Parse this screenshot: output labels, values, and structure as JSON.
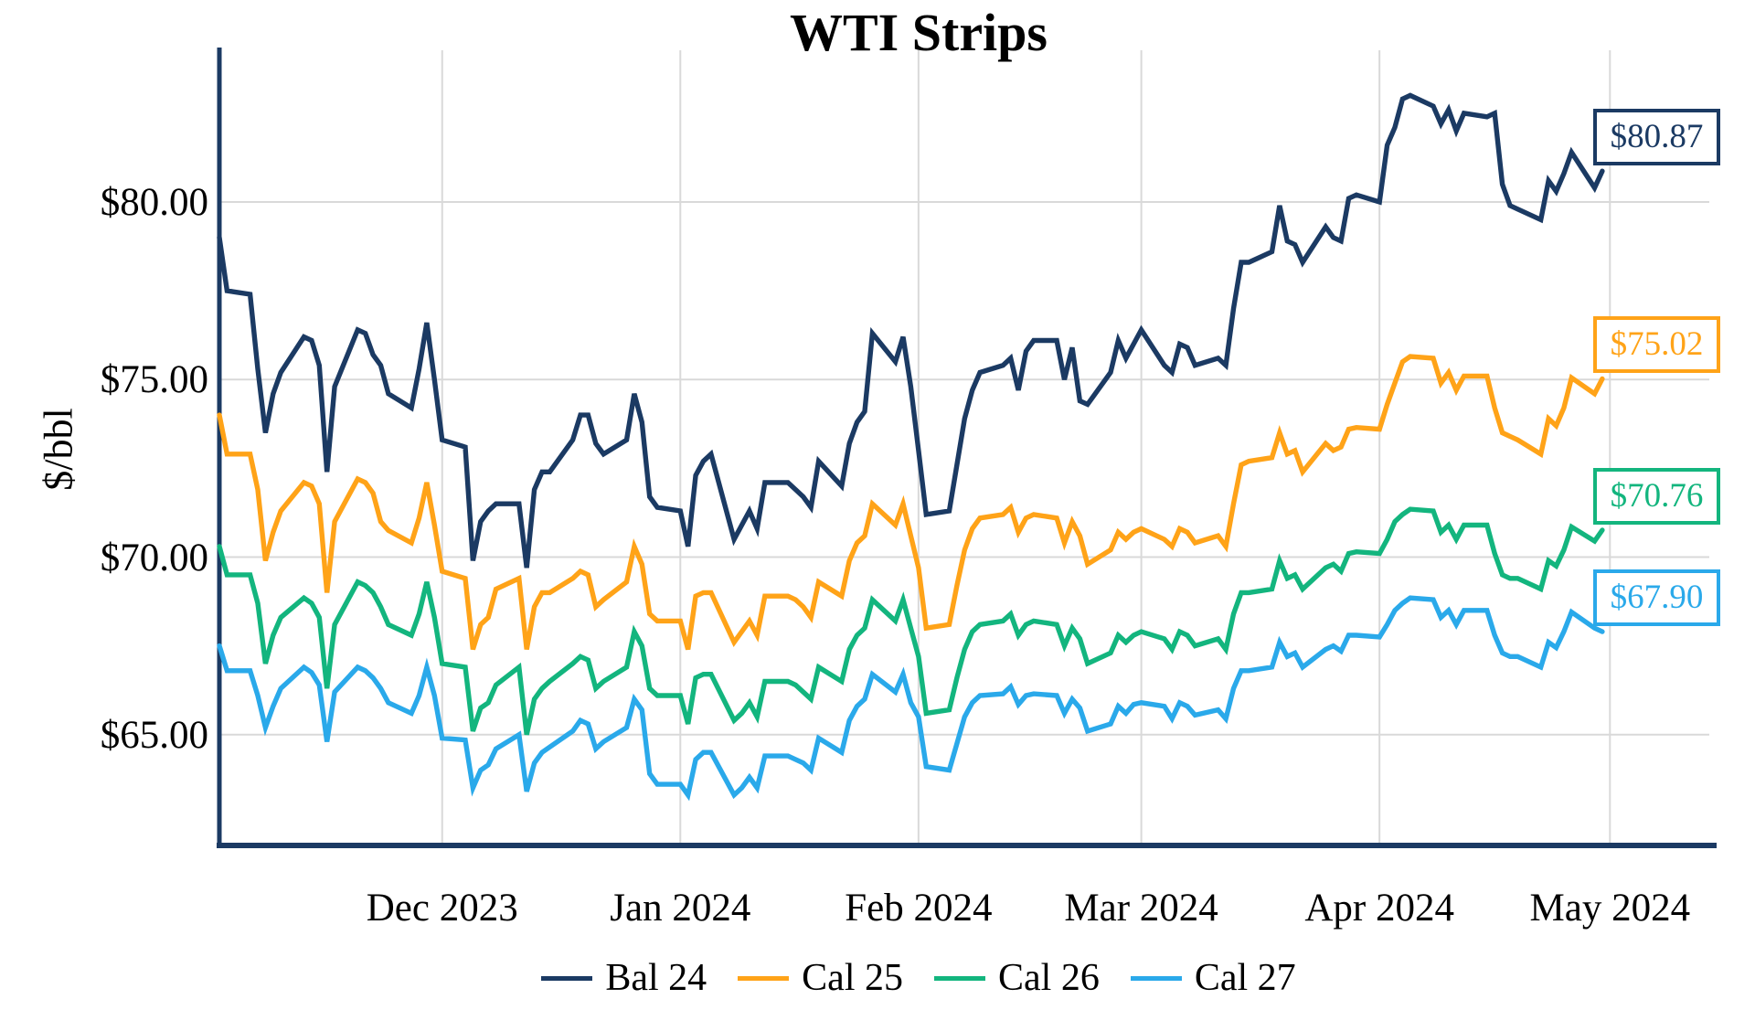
{
  "chart_data": {
    "type": "line",
    "title": "WTI Strips",
    "ylabel": "$/bbl",
    "xlabel": "",
    "grid": true,
    "legend_position": "bottom-center",
    "ylim": [
      61.9,
      84.3
    ],
    "y_ticks": [
      {
        "value": 80,
        "label": "$80.00"
      },
      {
        "value": 75,
        "label": "$75.00"
      },
      {
        "value": 70,
        "label": "$70.00"
      },
      {
        "value": 65,
        "label": "$65.00"
      }
    ],
    "x_ticks": [
      {
        "date": "2023-12-01",
        "label": "Dec 2023"
      },
      {
        "date": "2024-01-01",
        "label": "Jan 2024"
      },
      {
        "date": "2024-02-01",
        "label": "Feb 2024"
      },
      {
        "date": "2024-03-01",
        "label": "Mar 2024"
      },
      {
        "date": "2024-04-01",
        "label": "Apr 2024"
      },
      {
        "date": "2024-05-01",
        "label": "May 2024"
      }
    ],
    "x_dates": [
      "2023-11-02",
      "2023-11-03",
      "2023-11-06",
      "2023-11-07",
      "2023-11-08",
      "2023-11-09",
      "2023-11-10",
      "2023-11-13",
      "2023-11-14",
      "2023-11-15",
      "2023-11-16",
      "2023-11-17",
      "2023-11-20",
      "2023-11-21",
      "2023-11-22",
      "2023-11-23",
      "2023-11-24",
      "2023-11-27",
      "2023-11-28",
      "2023-11-29",
      "2023-11-30",
      "2023-12-01",
      "2023-12-04",
      "2023-12-05",
      "2023-12-06",
      "2023-12-07",
      "2023-12-08",
      "2023-12-11",
      "2023-12-12",
      "2023-12-13",
      "2023-12-14",
      "2023-12-15",
      "2023-12-18",
      "2023-12-19",
      "2023-12-20",
      "2023-12-21",
      "2023-12-22",
      "2023-12-25",
      "2023-12-26",
      "2023-12-27",
      "2023-12-28",
      "2023-12-29",
      "2024-01-01",
      "2024-01-02",
      "2024-01-03",
      "2024-01-04",
      "2024-01-05",
      "2024-01-08",
      "2024-01-09",
      "2024-01-10",
      "2024-01-11",
      "2024-01-12",
      "2024-01-15",
      "2024-01-16",
      "2024-01-17",
      "2024-01-18",
      "2024-01-19",
      "2024-01-22",
      "2024-01-23",
      "2024-01-24",
      "2024-01-25",
      "2024-01-26",
      "2024-01-29",
      "2024-01-30",
      "2024-01-31",
      "2024-02-01",
      "2024-02-02",
      "2024-02-05",
      "2024-02-06",
      "2024-02-07",
      "2024-02-08",
      "2024-02-09",
      "2024-02-12",
      "2024-02-13",
      "2024-02-14",
      "2024-02-15",
      "2024-02-16",
      "2024-02-19",
      "2024-02-20",
      "2024-02-21",
      "2024-02-22",
      "2024-02-23",
      "2024-02-26",
      "2024-02-27",
      "2024-02-28",
      "2024-02-29",
      "2024-03-01",
      "2024-03-04",
      "2024-03-05",
      "2024-03-06",
      "2024-03-07",
      "2024-03-08",
      "2024-03-11",
      "2024-03-12",
      "2024-03-13",
      "2024-03-14",
      "2024-03-15",
      "2024-03-18",
      "2024-03-19",
      "2024-03-20",
      "2024-03-21",
      "2024-03-22",
      "2024-03-25",
      "2024-03-26",
      "2024-03-27",
      "2024-03-28",
      "2024-03-29",
      "2024-04-01",
      "2024-04-02",
      "2024-04-03",
      "2024-04-04",
      "2024-04-05",
      "2024-04-08",
      "2024-04-09",
      "2024-04-10",
      "2024-04-11",
      "2024-04-12",
      "2024-04-15",
      "2024-04-16",
      "2024-04-17",
      "2024-04-18",
      "2024-04-19",
      "2024-04-22",
      "2024-04-23",
      "2024-04-24",
      "2024-04-25",
      "2024-04-26",
      "2024-04-29",
      "2024-04-30"
    ],
    "series": [
      {
        "name": "Bal 24",
        "color": "#1b3a63",
        "end_label": "$80.87",
        "values": [
          79.0,
          77.5,
          77.4,
          75.3,
          73.5,
          74.6,
          75.2,
          76.2,
          76.1,
          75.4,
          72.4,
          74.8,
          76.4,
          76.3,
          75.7,
          75.4,
          74.6,
          74.2,
          75.3,
          76.6,
          75.0,
          73.3,
          73.1,
          69.9,
          71.0,
          71.3,
          71.5,
          71.5,
          69.7,
          71.9,
          72.4,
          72.4,
          73.3,
          74.0,
          74.0,
          73.2,
          72.9,
          73.3,
          74.6,
          73.8,
          71.7,
          71.4,
          71.3,
          70.3,
          72.3,
          72.7,
          72.9,
          70.5,
          70.9,
          71.3,
          70.8,
          72.1,
          72.1,
          71.9,
          71.7,
          71.4,
          72.7,
          72.0,
          73.2,
          73.8,
          74.1,
          76.3,
          75.5,
          76.2,
          74.8,
          73.0,
          71.2,
          71.3,
          72.6,
          73.9,
          74.7,
          75.2,
          75.4,
          75.6,
          74.7,
          75.8,
          76.1,
          76.1,
          75.0,
          75.9,
          74.4,
          74.3,
          75.2,
          76.1,
          75.6,
          76.0,
          76.4,
          75.4,
          75.2,
          76.0,
          75.9,
          75.4,
          75.6,
          75.4,
          77.0,
          78.3,
          78.3,
          78.6,
          79.9,
          78.9,
          78.8,
          78.3,
          79.3,
          79.0,
          78.9,
          80.1,
          80.2,
          80.0,
          81.6,
          82.1,
          82.9,
          83.0,
          82.7,
          82.2,
          82.6,
          82.0,
          82.5,
          82.4,
          82.5,
          80.5,
          79.9,
          79.8,
          79.5,
          80.6,
          80.3,
          80.8,
          81.4,
          80.4,
          80.87
        ]
      },
      {
        "name": "Cal 25",
        "color": "#ffa318",
        "end_label": "$75.02",
        "values": [
          74.0,
          72.9,
          72.9,
          71.9,
          69.9,
          70.7,
          71.3,
          72.1,
          72.0,
          71.5,
          69.0,
          71.0,
          72.2,
          72.1,
          71.8,
          71.0,
          70.75,
          70.4,
          71.1,
          72.1,
          70.9,
          69.6,
          69.4,
          67.4,
          68.1,
          68.3,
          69.1,
          69.4,
          67.4,
          68.6,
          69.0,
          69.0,
          69.4,
          69.6,
          69.5,
          68.6,
          68.8,
          69.3,
          70.3,
          69.8,
          68.4,
          68.2,
          68.2,
          67.4,
          68.9,
          69.0,
          69.0,
          67.6,
          67.9,
          68.2,
          67.8,
          68.9,
          68.9,
          68.8,
          68.6,
          68.3,
          69.3,
          68.9,
          69.9,
          70.4,
          70.6,
          71.5,
          70.9,
          71.5,
          70.6,
          69.7,
          68.0,
          68.1,
          69.2,
          70.2,
          70.8,
          71.1,
          71.2,
          71.4,
          70.7,
          71.1,
          71.2,
          71.1,
          70.4,
          71.0,
          70.6,
          69.8,
          70.2,
          70.7,
          70.5,
          70.7,
          70.8,
          70.5,
          70.3,
          70.8,
          70.7,
          70.4,
          70.6,
          70.3,
          71.5,
          72.6,
          72.7,
          72.8,
          73.5,
          72.9,
          73.0,
          72.4,
          73.2,
          73.0,
          73.1,
          73.6,
          73.65,
          73.6,
          74.3,
          74.9,
          75.5,
          75.65,
          75.6,
          74.9,
          75.2,
          74.7,
          75.1,
          75.1,
          74.2,
          73.5,
          73.4,
          73.3,
          72.9,
          73.9,
          73.7,
          74.2,
          75.05,
          74.6,
          75.02
        ]
      },
      {
        "name": "Cal 26",
        "color": "#13b57e",
        "end_label": "$70.76",
        "values": [
          70.3,
          69.5,
          69.5,
          68.7,
          67.0,
          67.8,
          68.3,
          68.85,
          68.7,
          68.3,
          66.3,
          68.1,
          69.3,
          69.2,
          69.0,
          68.6,
          68.1,
          67.8,
          68.4,
          69.3,
          68.3,
          67.0,
          66.9,
          65.1,
          65.75,
          65.9,
          66.4,
          66.9,
          65.0,
          66.0,
          66.3,
          66.5,
          67.0,
          67.2,
          67.1,
          66.3,
          66.5,
          66.9,
          67.9,
          67.5,
          66.3,
          66.1,
          66.1,
          65.3,
          66.6,
          66.7,
          66.7,
          65.4,
          65.6,
          65.9,
          65.5,
          66.5,
          66.5,
          66.4,
          66.2,
          66.0,
          66.9,
          66.5,
          67.4,
          67.8,
          68.0,
          68.8,
          68.2,
          68.8,
          68.0,
          67.2,
          65.6,
          65.7,
          66.6,
          67.4,
          67.9,
          68.1,
          68.2,
          68.4,
          67.8,
          68.1,
          68.2,
          68.1,
          67.5,
          68.0,
          67.7,
          67.0,
          67.3,
          67.8,
          67.6,
          67.8,
          67.9,
          67.7,
          67.4,
          67.9,
          67.8,
          67.5,
          67.7,
          67.4,
          68.4,
          69.0,
          69.0,
          69.1,
          69.9,
          69.4,
          69.5,
          69.1,
          69.7,
          69.8,
          69.6,
          70.1,
          70.15,
          70.1,
          70.5,
          71.0,
          71.2,
          71.35,
          71.3,
          70.7,
          70.9,
          70.5,
          70.9,
          70.9,
          70.1,
          69.5,
          69.4,
          69.4,
          69.1,
          69.9,
          69.75,
          70.2,
          70.85,
          70.45,
          70.76
        ]
      },
      {
        "name": "Cal 27",
        "color": "#2aa9ea",
        "end_label": "$67.90",
        "values": [
          67.5,
          66.8,
          66.8,
          66.1,
          65.2,
          65.8,
          66.3,
          66.9,
          66.75,
          66.4,
          64.8,
          66.2,
          66.9,
          66.8,
          66.6,
          66.3,
          65.9,
          65.6,
          66.1,
          66.9,
          66.1,
          64.9,
          64.85,
          63.5,
          64.0,
          64.15,
          64.6,
          65.0,
          63.4,
          64.2,
          64.5,
          64.65,
          65.1,
          65.4,
          65.3,
          64.6,
          64.8,
          65.2,
          66.0,
          65.7,
          63.9,
          63.6,
          63.6,
          63.3,
          64.3,
          64.5,
          64.5,
          63.3,
          63.5,
          63.8,
          63.5,
          64.4,
          64.4,
          64.3,
          64.2,
          64.0,
          64.9,
          64.5,
          65.4,
          65.8,
          66.0,
          66.7,
          66.2,
          66.7,
          65.9,
          65.5,
          64.1,
          64.0,
          64.75,
          65.5,
          65.9,
          66.1,
          66.15,
          66.35,
          65.85,
          66.1,
          66.15,
          66.1,
          65.6,
          66.0,
          65.75,
          65.1,
          65.3,
          65.8,
          65.6,
          65.85,
          65.9,
          65.8,
          65.45,
          65.9,
          65.8,
          65.55,
          65.7,
          65.45,
          66.3,
          66.8,
          66.8,
          66.9,
          67.6,
          67.2,
          67.3,
          66.9,
          67.4,
          67.5,
          67.35,
          67.8,
          67.8,
          67.75,
          68.1,
          68.5,
          68.7,
          68.85,
          68.8,
          68.3,
          68.5,
          68.1,
          68.5,
          68.5,
          67.8,
          67.3,
          67.2,
          67.2,
          66.9,
          67.6,
          67.45,
          67.9,
          68.45,
          68.0,
          67.9
        ]
      }
    ],
    "colors": {
      "axis": "#1b3a63",
      "gridline": "#d9d9d9",
      "background": "#ffffff",
      "text": "#000000"
    }
  }
}
